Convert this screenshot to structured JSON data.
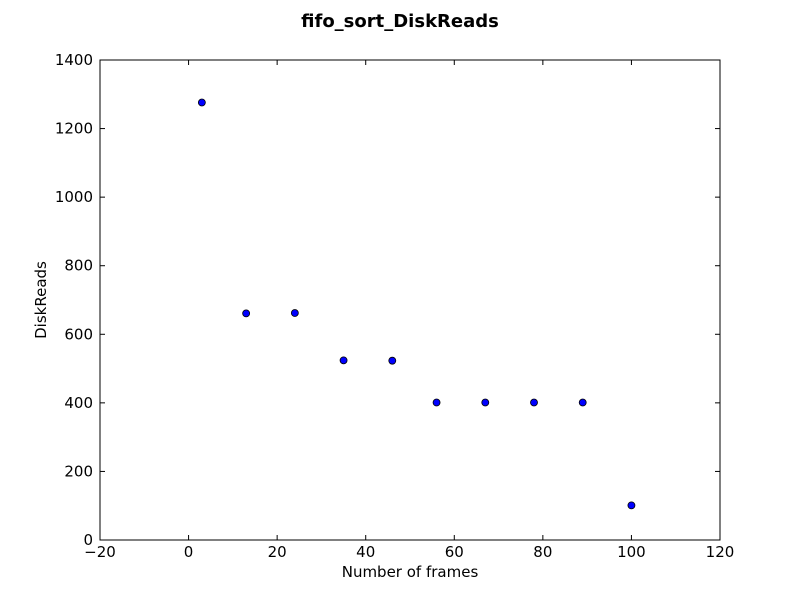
{
  "chart_data": {
    "type": "scatter",
    "title": "fifo_sort_DiskReads",
    "xlabel": "Number of frames",
    "ylabel": "DiskReads",
    "xlim": [
      -20,
      120
    ],
    "ylim": [
      0,
      1400
    ],
    "x_ticks": [
      -20,
      0,
      20,
      40,
      60,
      80,
      100,
      120
    ],
    "y_ticks": [
      0,
      200,
      400,
      600,
      800,
      1000,
      1200,
      1400
    ],
    "x_tick_labels": [
      "−20",
      "0",
      "20",
      "40",
      "60",
      "80",
      "100",
      "120"
    ],
    "y_tick_labels": [
      "0",
      "200",
      "400",
      "600",
      "800",
      "1000",
      "1200",
      "1400"
    ],
    "grid": false,
    "marker_color": "#0000ff",
    "series": [
      {
        "x": [
          3,
          13,
          24,
          35,
          46,
          56,
          67,
          78,
          89,
          100
        ],
        "y": [
          1276,
          661,
          662,
          524,
          523,
          401,
          401,
          401,
          401,
          101
        ]
      }
    ]
  }
}
